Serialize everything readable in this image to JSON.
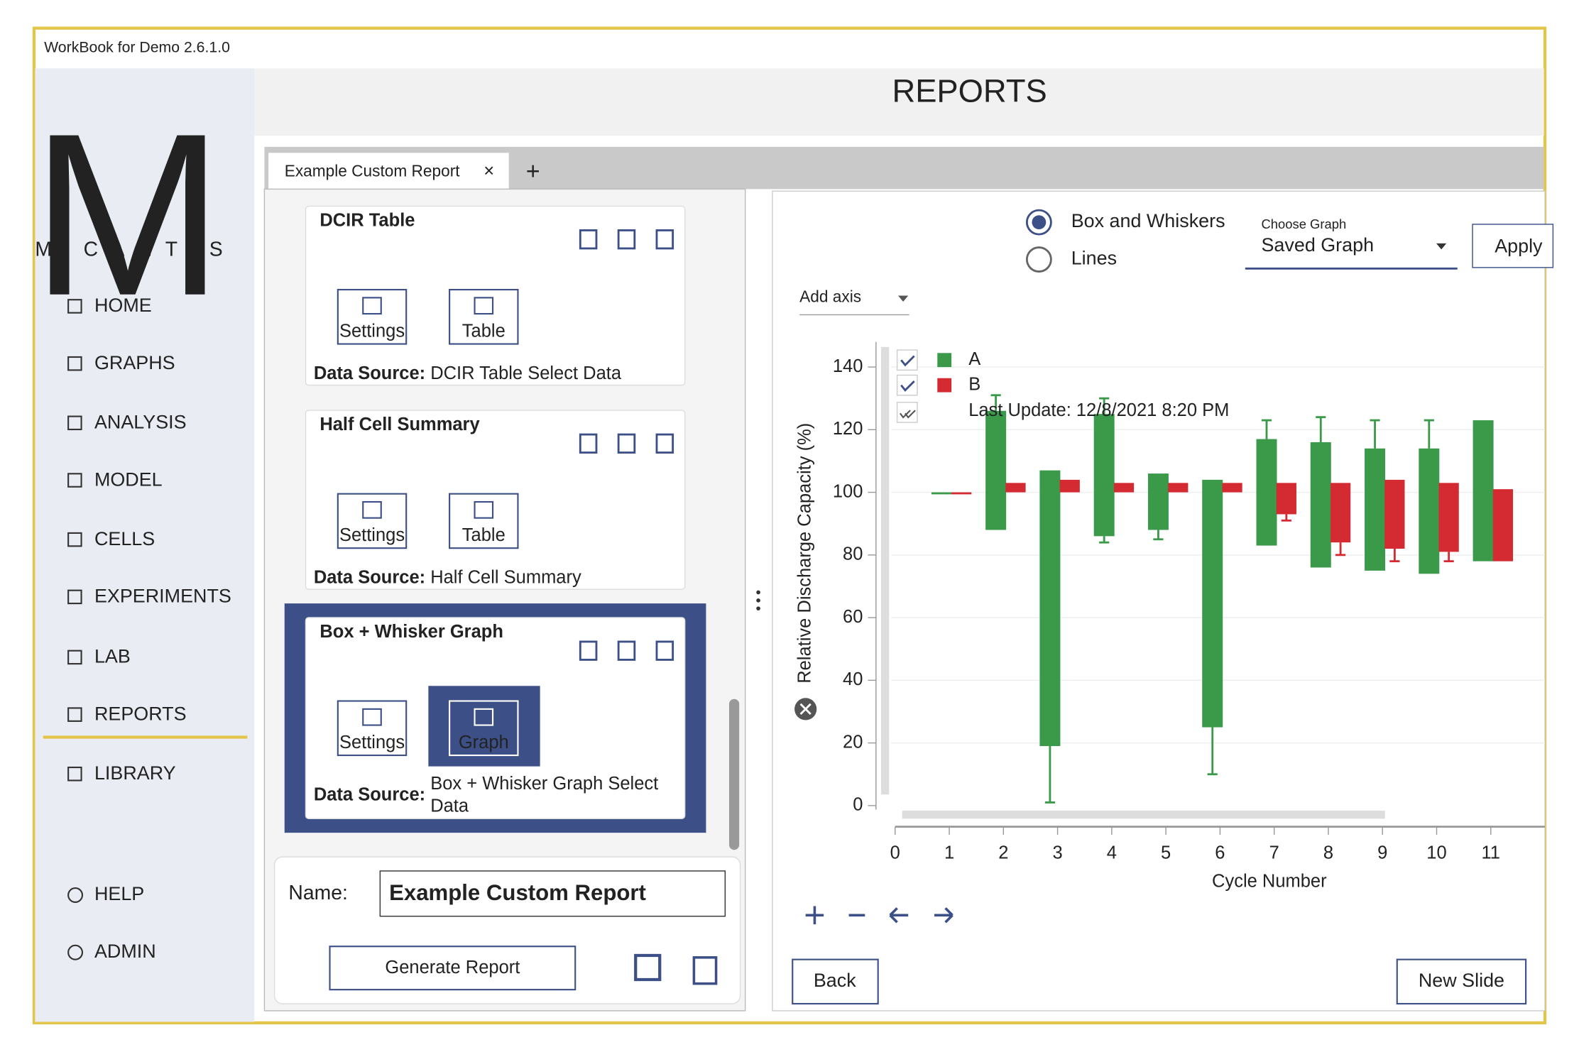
{
  "window_title": "WorkBook for Demo 2.6.1.0",
  "logo": {
    "letter": "M",
    "name": "MICANTIS"
  },
  "nav": [
    "HOME",
    "GRAPHS",
    "ANALYSIS",
    "MODEL",
    "CELLS",
    "EXPERIMENTS",
    "LAB",
    "REPORTS",
    "LIBRARY"
  ],
  "nav_bottom": [
    "HELP",
    "ADMIN"
  ],
  "page_title": "REPORTS",
  "tab": "Example Custom Report",
  "report_items": [
    {
      "title": "DCIR Table",
      "buttons": [
        "Settings",
        "Table"
      ],
      "data_source_label": "Data Source:",
      "data_source": "DCIR Table Select Data"
    },
    {
      "title": "Half Cell Summary",
      "buttons": [
        "Settings",
        "Table"
      ],
      "data_source_label": "Data Source:",
      "data_source": "Half Cell Summary"
    },
    {
      "title": "Box + Whisker Graph",
      "buttons": [
        "Settings",
        "Graph"
      ],
      "data_source_label": "Data Source:",
      "data_source": "Box + Whisker Graph Select Data"
    }
  ],
  "name_label": "Name:",
  "name_value": "Example Custom Report",
  "generate_button": "Generate Report",
  "graph_options": [
    "Box and Whiskers",
    "Lines"
  ],
  "choose_graph_label": "Choose Graph",
  "choose_graph_value": "Saved Graph",
  "apply_button": "Apply",
  "add_axis": "Add axis",
  "chart": {
    "type": "box",
    "ylabel": "Relative Discharge Capacity (%)",
    "xlabel": "Cycle Number",
    "annotation": "Last Update: 12/8/2021 8:20 PM",
    "x": [
      1,
      2,
      3,
      4,
      5,
      6,
      7,
      8,
      9,
      10,
      11
    ],
    "series": [
      {
        "name": "A",
        "color": "#3a9a4a",
        "box_low": [
          100,
          88,
          19,
          86,
          88,
          25,
          83,
          76,
          75,
          74,
          78
        ],
        "box_high": [
          100,
          126,
          107,
          125,
          106,
          104,
          117,
          116,
          114,
          114,
          123
        ],
        "whisker_low": [
          null,
          null,
          1,
          84,
          85,
          10,
          null,
          null,
          null,
          null,
          null
        ],
        "whisker_high": [
          null,
          131,
          null,
          130,
          null,
          null,
          123,
          124,
          123,
          123,
          null
        ]
      },
      {
        "name": "B",
        "color": "#d42a32",
        "box_low": [
          100,
          100,
          100,
          100,
          100,
          100,
          93,
          84,
          82,
          81,
          78
        ],
        "box_high": [
          100,
          103,
          104,
          103,
          103,
          103,
          103,
          103,
          104,
          103,
          101
        ],
        "whisker_low": [
          null,
          null,
          null,
          null,
          null,
          null,
          91,
          80,
          78,
          78,
          null
        ],
        "whisker_high": [
          null,
          null,
          null,
          null,
          null,
          null,
          null,
          null,
          null,
          null,
          null
        ]
      }
    ],
    "xlim": [
      0,
      12
    ],
    "xticks": [
      0,
      1,
      2,
      3,
      4,
      5,
      6,
      7,
      8,
      9,
      10,
      11
    ],
    "ylim": [
      0,
      148
    ],
    "yticks": [
      0,
      20,
      40,
      60,
      80,
      100,
      120,
      140
    ],
    "grid": true
  },
  "back_button": "Back",
  "new_slide_button": "New Slide"
}
